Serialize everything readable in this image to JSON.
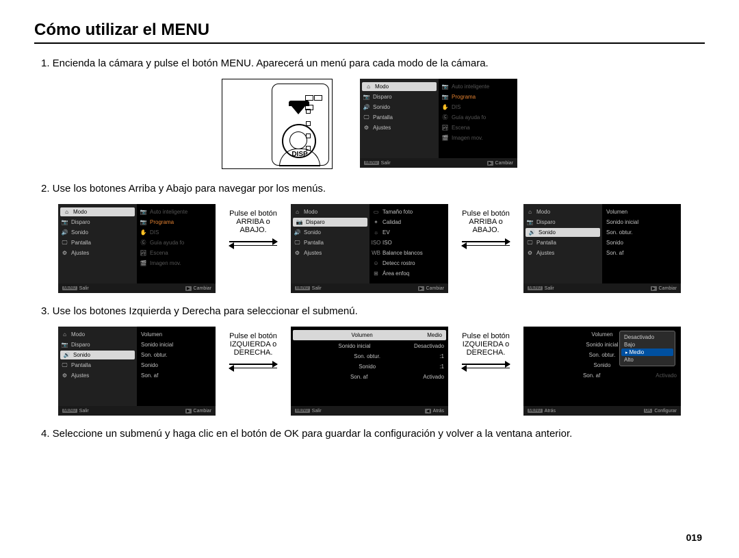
{
  "title": "Cómo utilizar el MENU",
  "page_number": "019",
  "steps": {
    "s1": "1. Encienda la cámara y pulse el botón MENU. Aparecerá un menú para cada modo de la cámara.",
    "s2": "2. Use los botones Arriba y Abajo para navegar por los menús.",
    "s3": "3. Use los botones Izquierda y Derecha para seleccionar el submenú.",
    "s4": "4. Seleccione un submenú y haga clic en el botón de OK para guardar la configuración y volver a la ventana anterior."
  },
  "camera": {
    "disp_label": "DISP"
  },
  "instructions": {
    "updown": "Pulse el botón ARRIBA o ABAJO.",
    "leftright": "Pulse el botón IZQUIERDA o DERECHA."
  },
  "footer": {
    "salir_badge": "MENU",
    "salir": "Salir",
    "cambiar_badge": "▶",
    "cambiar": "Cambiar",
    "atras_badge": "◀",
    "atras": "Atrás",
    "configurar_badge": "OK",
    "configurar": "Configurar"
  },
  "menu_left": {
    "items": [
      "Modo",
      "Disparo",
      "Sonido",
      "Pantalla",
      "Ajustes"
    ]
  },
  "menu_right_main": {
    "items": [
      "Auto inteligente",
      "Programa",
      "DIS",
      "Guía ayuda fo",
      "Escena",
      "Imagen mov."
    ]
  },
  "menu_disparo_right": {
    "items": [
      "Tamaño foto",
      "Calidad",
      "EV",
      "ISO",
      "Balance blancos",
      "Detecc rostro",
      "Área enfoq"
    ]
  },
  "menu_sonido_right": {
    "items": [
      "Volumen",
      "Sonido inicial",
      "Son. obtur.",
      "Sonido",
      "Son. af"
    ]
  },
  "sound_values": {
    "volumen_label": "Volumen",
    "volumen_val": "Medio",
    "inicial_label": "Sonido inicial",
    "inicial_val": "Desactivado",
    "obtur_label": "Son. obtur.",
    "obtur_val": "1",
    "sonido_label": "Sonido",
    "sonido_val": "1",
    "af_label": "Son. af",
    "af_val": "Activado"
  },
  "volume_options": [
    "Desactivado",
    "Bajo",
    "Medio",
    "Alto"
  ],
  "volume_selected": "Medio",
  "colors": {
    "screen_bg": "#000000",
    "text": "#c0c0c0",
    "highlight_bg": "#d8d8d8",
    "highlight_fg": "#000000",
    "dim": "#555555"
  }
}
